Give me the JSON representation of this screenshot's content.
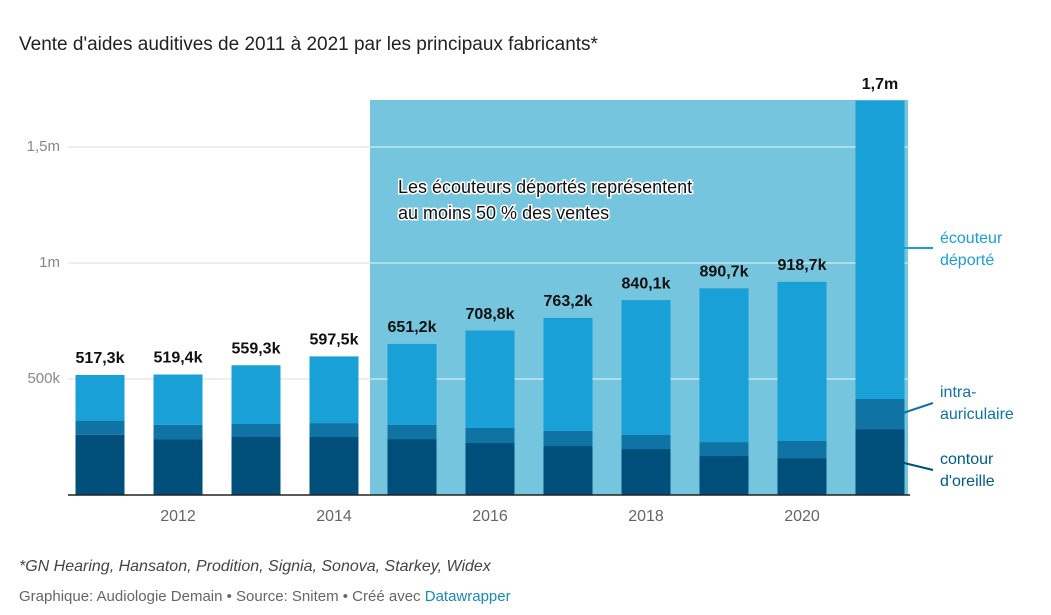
{
  "chart_data": {
    "type": "stacked-bar",
    "title": "Vente d'aides auditives de 2011 à 2021 par les principaux fabricants*",
    "categories": [
      null,
      "2012",
      null,
      "2014",
      null,
      "2016",
      null,
      "2018",
      null,
      "2020",
      null
    ],
    "series": [
      {
        "name": "contour d'oreille",
        "color": "#004f7a",
        "values": [
          259000,
          241000,
          250000,
          250000,
          241000,
          224000,
          211000,
          198000,
          168000,
          159000,
          284000
        ]
      },
      {
        "name": "intra-auriculaire",
        "color": "#0f73a3",
        "values": [
          60000,
          61000,
          56000,
          60000,
          61000,
          65000,
          65000,
          61000,
          60000,
          74000,
          130000
        ]
      },
      {
        "name": "écouteur déporté",
        "color": "#19a0d6",
        "values": [
          198300,
          217400,
          253300,
          287500,
          349200,
          419800,
          487200,
          581100,
          662700,
          685700,
          1286000
        ]
      }
    ],
    "totals": [
      517300,
      519400,
      559300,
      597500,
      651200,
      708800,
      763200,
      840100,
      890700,
      918700,
      1700000
    ],
    "value_labels": [
      "517,3k",
      "519,4k",
      "559,3k",
      "597,5k",
      "651,2k",
      "708,8k",
      "763,2k",
      "840,1k",
      "890,7k",
      "918,7k",
      "1,7m"
    ],
    "ylim": [
      0,
      1700000
    ],
    "yticks": [
      {
        "value": 500000,
        "label": "500k"
      },
      {
        "value": 1000000,
        "label": "1m"
      },
      {
        "value": 1500000,
        "label": "1,5m"
      }
    ],
    "grid": true,
    "annotation": [
      "Les écouteurs déportés représentent",
      "au moins 50 % des ventes"
    ],
    "note": "*GN Hearing, Hansaton, Prodition, Signia, Sonova, Starkey, Widex",
    "source": "Graphique: Audiologie Demain • Source: Snitem • Créé avec",
    "source_link": "Datawrapper"
  }
}
